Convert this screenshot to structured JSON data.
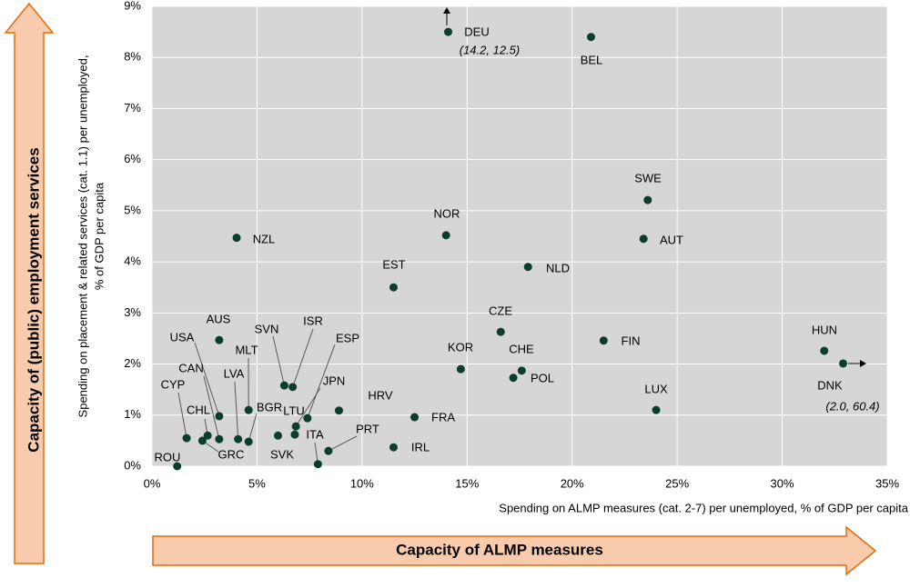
{
  "chart_data": {
    "type": "scatter",
    "x_label": "Spending on ALMP measures (cat. 2-7) per unemployed, % of GDP per capita",
    "y_label": [
      "Spending on placement & related services (cat. 1.1)  per unemployed,",
      "% of GDP per capita"
    ],
    "x_arrow_label": "Capacity of ALMP measures",
    "y_arrow_label": "Capacity of (public) employment services",
    "color": "#0b3d2e",
    "grid": true,
    "xlim": [
      0,
      35
    ],
    "ylim": [
      0,
      9
    ],
    "xticks": [
      {
        "value": 0,
        "label": "0%"
      },
      {
        "value": 5,
        "label": "5%"
      },
      {
        "value": 10,
        "label": "10%"
      },
      {
        "value": 15,
        "label": "15%"
      },
      {
        "value": 20,
        "label": "20%"
      },
      {
        "value": 25,
        "label": "25%"
      },
      {
        "value": 30,
        "label": "30%"
      },
      {
        "value": 35,
        "label": "35%"
      }
    ],
    "yticks": [
      {
        "value": 0,
        "label": "0%"
      },
      {
        "value": 1,
        "label": "1%"
      },
      {
        "value": 2,
        "label": "2%"
      },
      {
        "value": 3,
        "label": "3%"
      },
      {
        "value": 4,
        "label": "4%"
      },
      {
        "value": 5,
        "label": "5%"
      },
      {
        "value": 6,
        "label": "6%"
      },
      {
        "value": 7,
        "label": "7%"
      },
      {
        "value": 8,
        "label": "8%"
      },
      {
        "value": 9,
        "label": "9%"
      }
    ],
    "labels": [
      "ROU",
      "CYP",
      "GRC",
      "CHL",
      "CAN",
      "USA",
      "AUS",
      "LVA",
      "MLT",
      "BGR",
      "NZL",
      "SVK",
      "SVN",
      "ISR",
      "LTU",
      "JPN",
      "ESP",
      "ITA",
      "PRT",
      "HRV",
      "IRL",
      "FRA",
      "EST",
      "NOR",
      "DEU",
      "KOR",
      "CZE",
      "CHE",
      "POL",
      "NLD",
      "BEL",
      "FIN",
      "SWE",
      "AUT",
      "LUX",
      "HUN",
      "DNK"
    ],
    "x": [
      1.2,
      1.65,
      2.4,
      2.65,
      3.2,
      3.2,
      3.2,
      4.1,
      4.6,
      4.6,
      4.03,
      6.0,
      6.3,
      6.7,
      6.8,
      6.85,
      7.4,
      7.9,
      8.4,
      8.9,
      11.5,
      12.5,
      11.5,
      14.0,
      14.1,
      14.7,
      16.6,
      17.6,
      17.2,
      17.9,
      20.9,
      21.5,
      23.6,
      23.4,
      24.0,
      32.0,
      32.9
    ],
    "values": [
      0,
      0.55,
      0.5,
      0.6,
      0.53,
      0.98,
      2.47,
      0.53,
      1.1,
      0.48,
      4.47,
      0.6,
      1.58,
      1.55,
      0.62,
      0.78,
      0.94,
      0.04,
      0.3,
      1.09,
      0.37,
      0.96,
      3.5,
      4.52,
      8.5,
      1.9,
      2.63,
      1.87,
      1.73,
      3.9,
      8.4,
      2.46,
      5.21,
      4.45,
      1.1,
      2.26,
      2.01
    ],
    "annotations": [
      "(14.2, 12.5)",
      "(2.0, 60.4)"
    ]
  }
}
